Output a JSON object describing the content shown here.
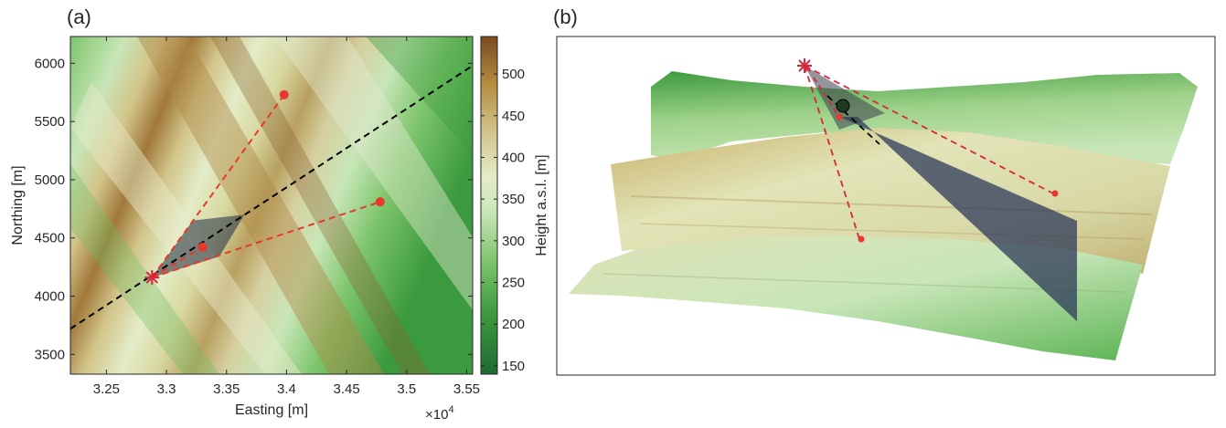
{
  "panels": {
    "a_label": "(a)",
    "b_label": "(b)"
  },
  "chart_data": [
    {
      "type": "heatmap",
      "panel": "(a)",
      "xlabel": "Easting [m]",
      "ylabel": "Northing [m]",
      "x_multiplier_label": "×10",
      "x_multiplier_exp": "4",
      "xlim": [
        32200,
        35550
      ],
      "ylim": [
        3330,
        6230
      ],
      "x_ticks": [
        32500,
        33000,
        33500,
        34000,
        34500,
        35000,
        35500
      ],
      "x_tick_labels": [
        "3.25",
        "3.3",
        "3.35",
        "3.4",
        "3.45",
        "3.5",
        "3.55"
      ],
      "y_ticks": [
        3500,
        4000,
        4500,
        5000,
        5500,
        6000
      ],
      "y_tick_labels": [
        "3500",
        "4000",
        "4500",
        "5000",
        "5500",
        "6000"
      ],
      "colorbar": {
        "label": "Height a.s.l. [m]",
        "range": [
          140,
          545
        ],
        "ticks": [
          150,
          200,
          250,
          300,
          350,
          400,
          450,
          500
        ],
        "tick_labels": [
          "150",
          "200",
          "250",
          "300",
          "350",
          "400",
          "450",
          "500"
        ],
        "colors": [
          "#1e6b31",
          "#3c9a3e",
          "#7cc46a",
          "#c8e6b8",
          "#e4ecc8",
          "#d2c489",
          "#b48c3e",
          "#7b4a1e"
        ]
      },
      "source": {
        "x": 32880,
        "y": 4160,
        "marker": "asterisk",
        "color": "#d7263d"
      },
      "receivers": [
        {
          "x": 33980,
          "y": 5730,
          "color": "#e8382b"
        },
        {
          "x": 34780,
          "y": 4810,
          "color": "#e8382b"
        },
        {
          "x": 33300,
          "y": 4420,
          "color": "#e8382b"
        }
      ],
      "profile_line": {
        "x": [
          32200,
          35550
        ],
        "y": [
          3720,
          5980
        ],
        "color": "#000000",
        "style": "dashed"
      },
      "footprint_polygon": {
        "x": [
          32880,
          33220,
          33650,
          33440
        ],
        "y": [
          4160,
          4650,
          4700,
          4340
        ],
        "color": "#2d3a4a",
        "opacity": 0.6
      }
    },
    {
      "type": "3d-surface",
      "panel": "(b)",
      "source_marker": "asterisk",
      "source_color": "#d7263d",
      "receiver_color": "#e8382b",
      "plane_color": "#2d3a5a"
    }
  ]
}
